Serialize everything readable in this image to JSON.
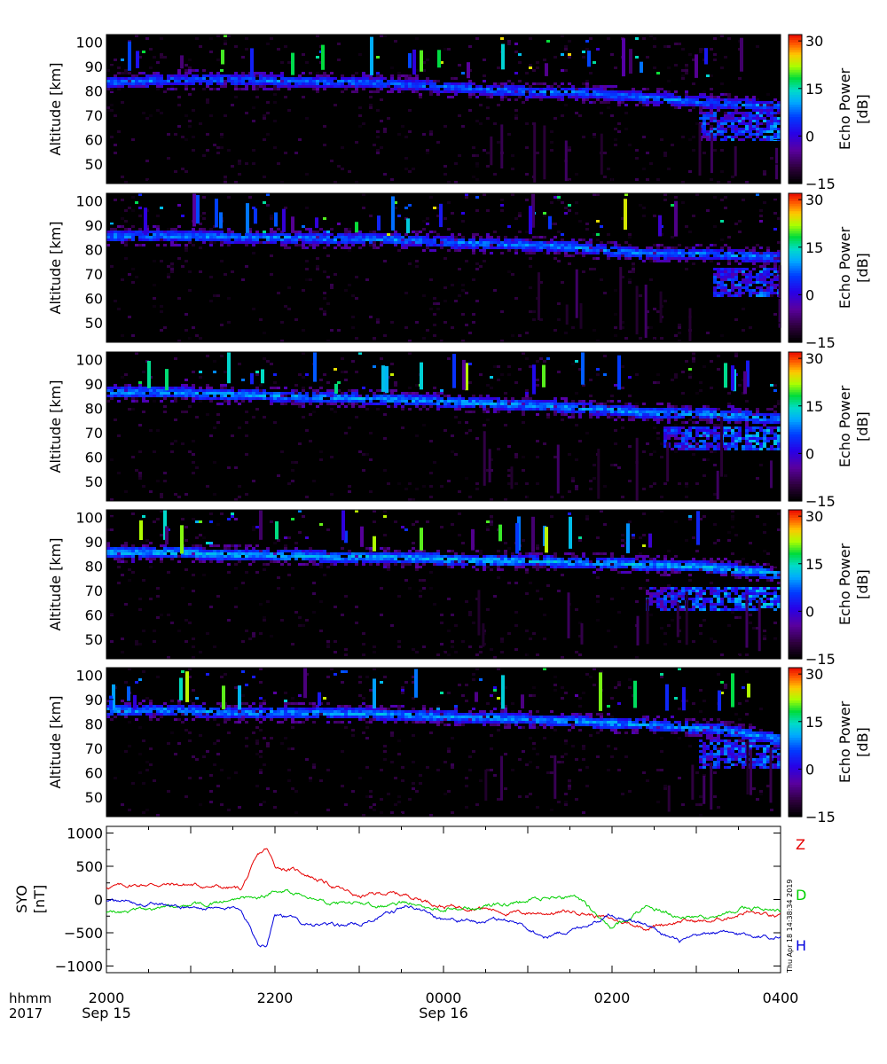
{
  "chart_data": [
    {
      "type": "heatmap",
      "panel": 1,
      "ylabel": "Altitude [km]",
      "y_ticks": [
        50,
        60,
        70,
        80,
        90,
        100
      ],
      "y_tick_labels": [
        "50",
        "60",
        "70",
        "80",
        "90",
        "100"
      ],
      "ylim": [
        42,
        103
      ],
      "xlim_hours": [
        20,
        28
      ],
      "colorbar": {
        "label_line1": "Echo Power",
        "label_line2": "[dB]",
        "range": [
          -15,
          32
        ],
        "ticks": [
          -15,
          0,
          15,
          30
        ],
        "tick_labels": [
          "−15",
          "0",
          "15",
          "30"
        ]
      },
      "echo_layer": [
        [
          20.0,
          84
        ],
        [
          21.0,
          85
        ],
        [
          22.0,
          84.5
        ],
        [
          23.0,
          84
        ],
        [
          23.6,
          83
        ],
        [
          24.0,
          82
        ],
        [
          25.0,
          80
        ],
        [
          25.5,
          80
        ],
        [
          26.3,
          78
        ],
        [
          27.0,
          76
        ],
        [
          28.0,
          74
        ]
      ],
      "lower_layer": {
        "start": 27.0,
        "end": 28.0,
        "altitude_range": [
          60,
          72
        ]
      },
      "power_dB": 5
    },
    {
      "type": "heatmap",
      "panel": 2,
      "ylabel": "Altitude [km]",
      "y_ticks": [
        50,
        60,
        70,
        80,
        90,
        100
      ],
      "y_tick_labels": [
        "50",
        "60",
        "70",
        "80",
        "90",
        "100"
      ],
      "ylim": [
        42,
        103
      ],
      "xlim_hours": [
        20,
        28
      ],
      "colorbar": {
        "label_line1": "Echo Power",
        "label_line2": "[dB]",
        "range": [
          -15,
          32
        ],
        "ticks": [
          -15,
          0,
          15,
          30
        ],
        "tick_labels": [
          "−15",
          "0",
          "15",
          "30"
        ]
      },
      "echo_layer": [
        [
          20.8,
          86
        ],
        [
          21.5,
          85.5
        ],
        [
          22.5,
          85
        ],
        [
          23.5,
          84.5
        ],
        [
          24.0,
          83.5
        ],
        [
          24.7,
          82.5
        ],
        [
          25.3,
          82
        ],
        [
          26.3,
          79
        ],
        [
          27.0,
          79
        ],
        [
          28.0,
          77
        ]
      ],
      "lower_layer": {
        "start": 27.2,
        "end": 28.0,
        "altitude_range": [
          61,
          73
        ]
      },
      "power_dB": 6
    },
    {
      "type": "heatmap",
      "panel": 3,
      "ylabel": "Altitude [km]",
      "y_ticks": [
        50,
        60,
        70,
        80,
        90,
        100
      ],
      "y_tick_labels": [
        "50",
        "60",
        "70",
        "80",
        "90",
        "100"
      ],
      "ylim": [
        42,
        103
      ],
      "xlim_hours": [
        20,
        28
      ],
      "colorbar": {
        "label_line1": "Echo Power",
        "label_line2": "[dB]",
        "range": [
          -15,
          32
        ],
        "ticks": [
          -15,
          0,
          15,
          30
        ],
        "tick_labels": [
          "−15",
          "0",
          "15",
          "30"
        ]
      },
      "echo_layer": [
        [
          20.8,
          87
        ],
        [
          21.5,
          86
        ],
        [
          22.5,
          85
        ],
        [
          23.0,
          84.5
        ],
        [
          23.5,
          84
        ],
        [
          24.5,
          82.5
        ],
        [
          25.2,
          81.5
        ],
        [
          25.8,
          80
        ],
        [
          26.5,
          78.5
        ],
        [
          27.2,
          78
        ],
        [
          28.0,
          76
        ]
      ],
      "lower_layer": {
        "start": 26.6,
        "end": 28.0,
        "altitude_range": [
          63,
          73
        ]
      },
      "power_dB": 7
    },
    {
      "type": "heatmap",
      "panel": 4,
      "ylabel": "Altitude [km]",
      "y_ticks": [
        50,
        60,
        70,
        80,
        90,
        100
      ],
      "y_tick_labels": [
        "50",
        "60",
        "70",
        "80",
        "90",
        "100"
      ],
      "ylim": [
        42,
        103
      ],
      "xlim_hours": [
        20,
        28
      ],
      "colorbar": {
        "label_line1": "Echo Power",
        "label_line2": "[dB]",
        "range": [
          -15,
          32
        ],
        "ticks": [
          -15,
          0,
          15,
          30
        ],
        "tick_labels": [
          "−15",
          "0",
          "15",
          "30"
        ]
      },
      "echo_layer": [
        [
          20.8,
          86
        ],
        [
          21.5,
          85
        ],
        [
          22.5,
          84.5
        ],
        [
          23.5,
          84
        ],
        [
          24.2,
          83
        ],
        [
          25.0,
          82.5
        ],
        [
          25.7,
          82
        ],
        [
          26.4,
          81
        ],
        [
          27.2,
          80
        ],
        [
          28.0,
          77
        ]
      ],
      "lower_layer": {
        "start": 26.4,
        "end": 28.0,
        "altitude_range": [
          62,
          72
        ]
      },
      "power_dB": 8
    },
    {
      "type": "heatmap",
      "panel": 5,
      "ylabel": "Altitude [km]",
      "y_ticks": [
        50,
        60,
        70,
        80,
        90,
        100
      ],
      "y_tick_labels": [
        "50",
        "60",
        "70",
        "80",
        "90",
        "100"
      ],
      "ylim": [
        42,
        103
      ],
      "xlim_hours": [
        20,
        28
      ],
      "colorbar": {
        "label_line1": "Echo Power",
        "label_line2": "[dB]",
        "range": [
          -15,
          32
        ],
        "ticks": [
          -15,
          0,
          15,
          30
        ],
        "tick_labels": [
          "−15",
          "0",
          "15",
          "30"
        ]
      },
      "echo_layer": [
        [
          20.8,
          86
        ],
        [
          21.5,
          85
        ],
        [
          22.5,
          85
        ],
        [
          23.2,
          84.5
        ],
        [
          24.0,
          83.5
        ],
        [
          24.5,
          83
        ],
        [
          25.2,
          82
        ],
        [
          26.5,
          80
        ],
        [
          27.3,
          78
        ],
        [
          28.0,
          74
        ]
      ],
      "lower_layer": {
        "start": 27.0,
        "end": 28.0,
        "altitude_range": [
          62,
          74
        ]
      },
      "power_dB": 7
    },
    {
      "type": "line",
      "ylabel_line1": "SYO",
      "ylabel_line2": "[nT]",
      "ylim": [
        -1100,
        1100
      ],
      "y_ticks": [
        -1000,
        -500,
        0,
        500,
        1000
      ],
      "y_tick_labels": [
        "−1000",
        "−500",
        "0",
        "500",
        "1000"
      ],
      "x_hours": [
        20.0,
        20.5,
        21.0,
        21.4,
        21.6,
        21.8,
        21.9,
        22.0,
        22.3,
        22.7,
        23.0,
        23.3,
        23.6,
        24.0,
        24.4,
        24.8,
        25.2,
        25.6,
        26.0,
        26.4,
        26.8,
        27.2,
        27.6,
        28.0
      ],
      "series": [
        {
          "name": "Z",
          "color": "#e60000",
          "values": [
            190,
            230,
            220,
            180,
            160,
            650,
            760,
            500,
            420,
            200,
            40,
            100,
            60,
            -100,
            -110,
            -200,
            -200,
            -180,
            -300,
            -420,
            -320,
            -330,
            -180,
            -280
          ]
        },
        {
          "name": "D",
          "color": "#00d000",
          "values": [
            -220,
            -130,
            -100,
            -30,
            20,
            40,
            60,
            150,
            100,
            -80,
            -60,
            -100,
            -30,
            -140,
            -120,
            -60,
            30,
            40,
            -450,
            -130,
            -240,
            -280,
            -120,
            -180
          ]
        },
        {
          "name": "H",
          "color": "#0000dd",
          "values": [
            -30,
            -60,
            -120,
            -160,
            -120,
            -660,
            -680,
            -200,
            -330,
            -400,
            -360,
            -230,
            -90,
            -290,
            -340,
            -300,
            -560,
            -430,
            -210,
            -380,
            -640,
            -500,
            -530,
            -560
          ]
        }
      ]
    }
  ],
  "x_axis": {
    "row1_label": "hhmm",
    "row2_label": "2017",
    "ticks": [
      {
        "hour": 20,
        "label": "2000",
        "date": "Sep 15"
      },
      {
        "hour": 22,
        "label": "2200",
        "date": ""
      },
      {
        "hour": 24,
        "label": "0000",
        "date": "Sep 16"
      },
      {
        "hour": 26,
        "label": "0200",
        "date": ""
      },
      {
        "hour": 28,
        "label": "0400",
        "date": ""
      }
    ]
  },
  "timestamp": "Thu Apr 18 14:38:34 2019"
}
